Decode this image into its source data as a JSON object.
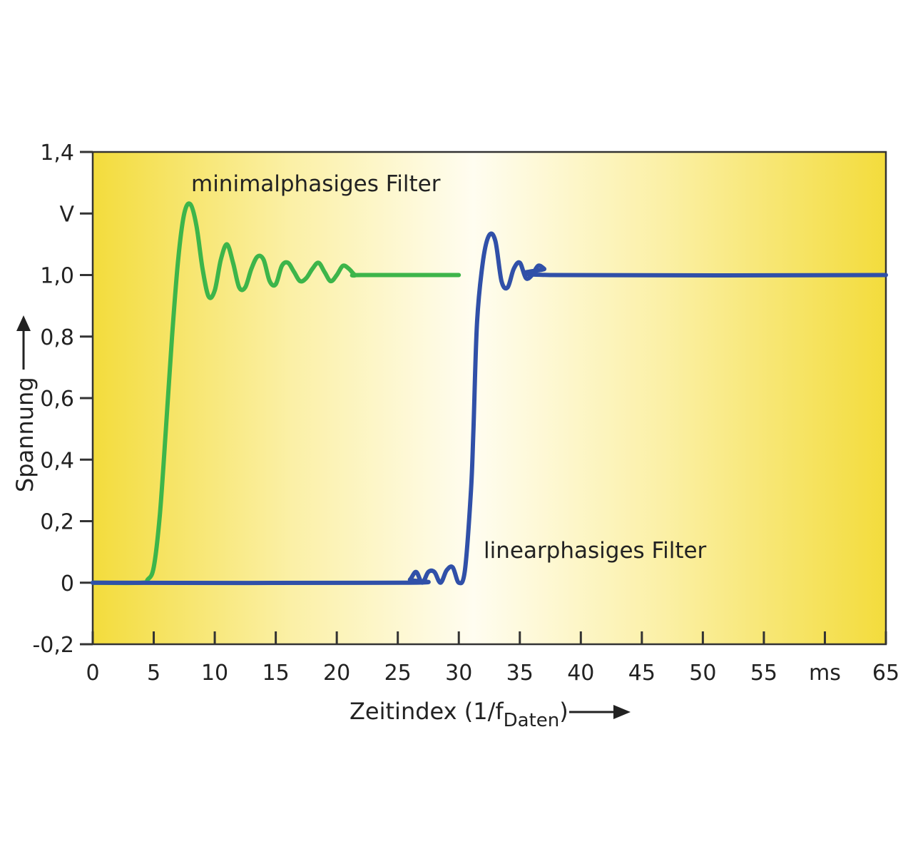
{
  "chart_data": {
    "type": "line",
    "ylabel": "Spannung",
    "yunit": "V",
    "xlabel_main": "Zeitindex (1/f",
    "xlabel_sub": "Daten",
    "xlabel_close": ")",
    "xunit": "ms",
    "xlim": [
      0,
      65
    ],
    "ylim": [
      -0.2,
      1.4
    ],
    "x_ticks": [
      0,
      5,
      10,
      15,
      20,
      25,
      30,
      35,
      40,
      45,
      50,
      55,
      60,
      65
    ],
    "x_tick_labels": [
      "0",
      "5",
      "10",
      "15",
      "20",
      "25",
      "30",
      "35",
      "40",
      "45",
      "50",
      "55",
      "ms",
      "65"
    ],
    "y_ticks": [
      -0.2,
      0,
      0.2,
      0.4,
      0.6,
      0.8,
      1.0,
      1.2,
      1.4
    ],
    "y_tick_labels": [
      "-0,2",
      "0",
      "0,2",
      "0,4",
      "0,6",
      "0,8",
      "1,0",
      "V",
      "1,4"
    ],
    "grid": false,
    "background_gradient": [
      "#f3dc3c",
      "#fbf0a6",
      "#fffdf0",
      "#fbf0a6",
      "#f3dc3c"
    ],
    "series": [
      {
        "name": "minimalphasiges Filter",
        "color": "#3db54a",
        "x": [
          0,
          4.0,
          4.5,
          5.0,
          5.5,
          6.0,
          6.5,
          7.0,
          7.5,
          8.0,
          8.5,
          9.0,
          9.5,
          10.0,
          10.5,
          11.0,
          11.5,
          12.0,
          12.5,
          13.0,
          13.5,
          14.0,
          14.5,
          15.0,
          15.5,
          16.0,
          16.5,
          17.0,
          17.5,
          18.0,
          18.5,
          19.0,
          19.5,
          20.0,
          20.5,
          21.0,
          21.5,
          22.0,
          30.0
        ],
        "y": [
          0,
          0,
          0.01,
          0.05,
          0.22,
          0.5,
          0.8,
          1.05,
          1.2,
          1.23,
          1.16,
          1.02,
          0.93,
          0.95,
          1.05,
          1.1,
          1.04,
          0.96,
          0.96,
          1.02,
          1.06,
          1.05,
          0.98,
          0.97,
          1.03,
          1.04,
          1.01,
          0.98,
          0.99,
          1.02,
          1.04,
          1.01,
          0.98,
          1.0,
          1.03,
          1.02,
          1.0,
          1.0,
          1.0
        ]
      },
      {
        "name": "linearphasiges Filter",
        "color": "#3050a8",
        "x": [
          0,
          25.5,
          26.0,
          26.5,
          27.0,
          27.5,
          28.0,
          28.5,
          29.0,
          29.5,
          30.0,
          30.5,
          31.0,
          31.2,
          31.5,
          32.0,
          32.5,
          33.0,
          33.5,
          34.0,
          34.5,
          35.0,
          35.5,
          36.0,
          36.5,
          37.0,
          37.5,
          65.0
        ],
        "y": [
          0,
          0,
          0.01,
          0.035,
          0.0,
          0.035,
          0.035,
          0.0,
          0.04,
          0.05,
          0.0,
          0.04,
          0.3,
          0.5,
          0.85,
          1.05,
          1.13,
          1.11,
          0.98,
          0.96,
          1.02,
          1.04,
          0.99,
          1.0,
          1.03,
          1.02,
          1.0,
          1.0
        ]
      }
    ]
  }
}
